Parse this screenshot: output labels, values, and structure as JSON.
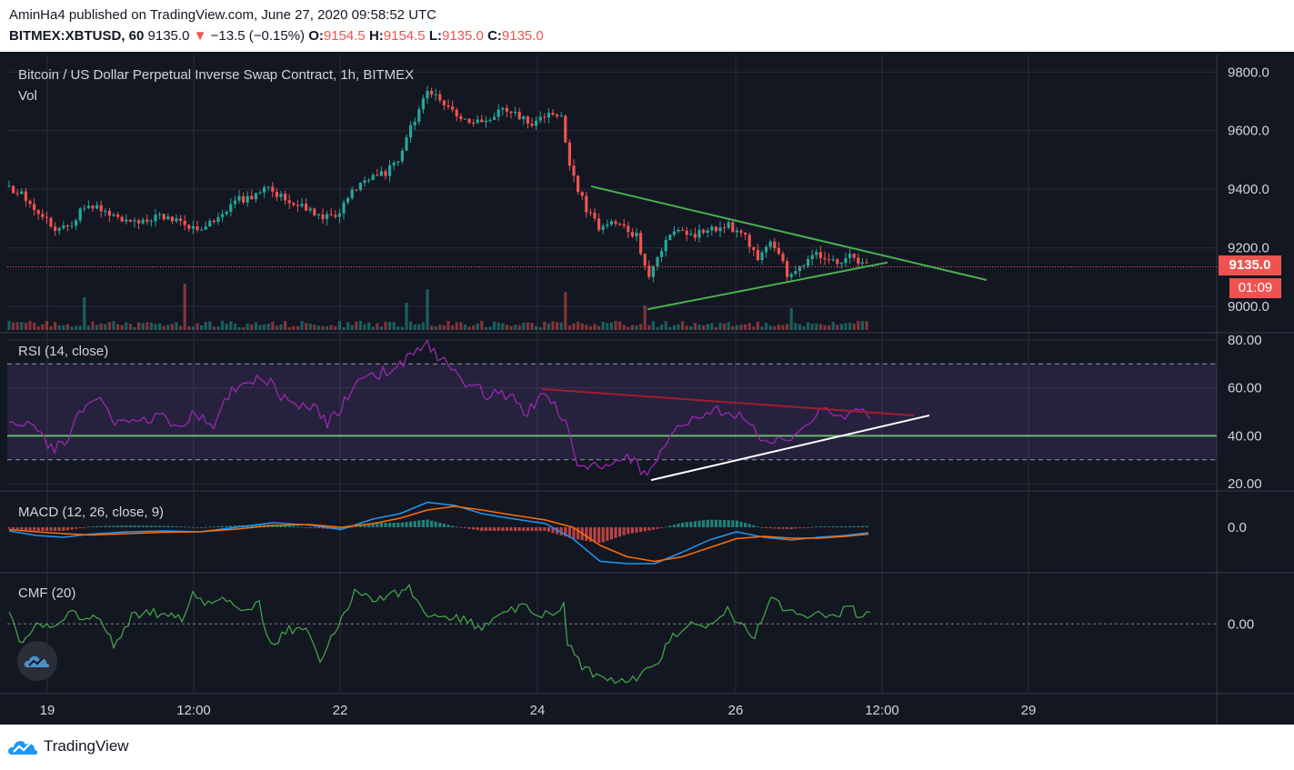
{
  "header": {
    "publisher_line": "AminHa4 published on TradingView.com, June 27, 2020 09:58:52 UTC",
    "symbol": "BITMEX:XBTUSD, 60",
    "last": "9135.0",
    "change_arrow": "▼",
    "change": "−13.5 (−0.15%)",
    "o_label": "O:",
    "o_value": "9154.5",
    "h_label": "H:",
    "h_value": "9154.5",
    "l_label": "L:",
    "l_value": "9135.0",
    "c_label": "C:",
    "c_value": "9135.0"
  },
  "main_pane": {
    "title": "Bitcoin / US Dollar Perpetual Inverse Swap Contract, 1h, BITMEX",
    "vol_label": "Vol",
    "price_badge": "9135.0",
    "countdown_badge": "01:09"
  },
  "rsi_pane": {
    "title": "RSI (14, close)"
  },
  "macd_pane": {
    "title": "MACD (12, 26, close, 9)"
  },
  "cmf_pane": {
    "title": "CMF (20)"
  },
  "footer": {
    "brand": "TradingView"
  },
  "colors": {
    "background": "#131722",
    "up_candle": "#26a69a",
    "down_candle": "#ef5350",
    "trendline": "#4caf50",
    "rsi_line": "#9c27b0",
    "macd_line": "#2196f3",
    "signal_line": "#ff6d00",
    "cmf_line": "#43a047"
  },
  "chart_data": [
    {
      "type": "candlestick",
      "title": "Bitcoin / US Dollar Perpetual Inverse Swap Contract, 1h, BITMEX",
      "x_ticks": [
        "19",
        "12:00",
        "22",
        "24",
        "26",
        "12:00",
        "29"
      ],
      "y_ticks": [
        "9800.0",
        "9600.0",
        "9400.0",
        "9200.0",
        "9000.0"
      ],
      "ylim": [
        8910,
        9860
      ],
      "path_close": [
        [
          0,
          9410
        ],
        [
          25,
          9380
        ],
        [
          45,
          9310
        ],
        [
          60,
          9260
        ],
        [
          80,
          9290
        ],
        [
          95,
          9360
        ],
        [
          110,
          9330
        ],
        [
          130,
          9300
        ],
        [
          150,
          9290
        ],
        [
          175,
          9310
        ],
        [
          200,
          9280
        ],
        [
          220,
          9270
        ],
        [
          240,
          9300
        ],
        [
          260,
          9360
        ],
        [
          280,
          9380
        ],
        [
          295,
          9400
        ],
        [
          315,
          9360
        ],
        [
          335,
          9340
        ],
        [
          355,
          9300
        ],
        [
          375,
          9320
        ],
        [
          385,
          9400
        ],
        [
          405,
          9430
        ],
        [
          425,
          9460
        ],
        [
          440,
          9500
        ],
        [
          450,
          9600
        ],
        [
          462,
          9680
        ],
        [
          470,
          9730
        ],
        [
          485,
          9700
        ],
        [
          500,
          9660
        ],
        [
          520,
          9620
        ],
        [
          535,
          9640
        ],
        [
          552,
          9680
        ],
        [
          570,
          9650
        ],
        [
          585,
          9620
        ],
        [
          600,
          9660
        ],
        [
          618,
          9640
        ],
        [
          624,
          9500
        ],
        [
          634,
          9410
        ],
        [
          645,
          9330
        ],
        [
          660,
          9260
        ],
        [
          680,
          9290
        ],
        [
          700,
          9240
        ],
        [
          712,
          9100
        ],
        [
          725,
          9170
        ],
        [
          740,
          9270
        ],
        [
          760,
          9240
        ],
        [
          780,
          9260
        ],
        [
          800,
          9280
        ],
        [
          820,
          9230
        ],
        [
          835,
          9160
        ],
        [
          845,
          9210
        ],
        [
          855,
          9200
        ],
        [
          866,
          9110
        ],
        [
          880,
          9140
        ],
        [
          895,
          9180
        ],
        [
          915,
          9150
        ],
        [
          935,
          9170
        ],
        [
          955,
          9140
        ]
      ],
      "volume_spikes": [
        {
          "x": 205,
          "v": 0.85
        },
        {
          "x": 469,
          "v": 0.75
        },
        {
          "x": 622,
          "v": 0.7
        },
        {
          "x": 710,
          "v": 0.45
        },
        {
          "x": 92,
          "v": 0.6
        },
        {
          "x": 448,
          "v": 0.5
        },
        {
          "x": 870,
          "v": 0.4
        }
      ],
      "last_price": 9135.0,
      "annotations": [
        {
          "name": "descending-trendline",
          "from": [
            650,
            9410
          ],
          "to": [
            1085,
            9090
          ]
        },
        {
          "name": "ascending-trendline",
          "from": [
            712,
            8990
          ],
          "to": [
            976,
            9150
          ]
        }
      ]
    },
    {
      "type": "line",
      "title": "RSI (14, close)",
      "y_ticks": [
        "80.00",
        "60.00",
        "40.00",
        "20.00"
      ],
      "ylim": [
        17,
        83
      ],
      "band": [
        30,
        70
      ],
      "midline": 40,
      "path": [
        [
          10,
          46
        ],
        [
          30,
          44
        ],
        [
          45,
          40
        ],
        [
          60,
          34
        ],
        [
          75,
          40
        ],
        [
          95,
          55
        ],
        [
          110,
          54
        ],
        [
          130,
          45
        ],
        [
          150,
          46
        ],
        [
          175,
          48
        ],
        [
          200,
          42
        ],
        [
          215,
          50
        ],
        [
          235,
          43
        ],
        [
          255,
          60
        ],
        [
          275,
          63
        ],
        [
          290,
          65
        ],
        [
          305,
          58
        ],
        [
          325,
          52
        ],
        [
          345,
          52
        ],
        [
          360,
          45
        ],
        [
          375,
          52
        ],
        [
          390,
          61
        ],
        [
          405,
          64
        ],
        [
          425,
          67
        ],
        [
          440,
          70
        ],
        [
          455,
          74
        ],
        [
          470,
          79
        ],
        [
          485,
          72
        ],
        [
          500,
          66
        ],
        [
          520,
          60
        ],
        [
          540,
          57
        ],
        [
          560,
          57
        ],
        [
          580,
          49
        ],
        [
          595,
          58
        ],
        [
          610,
          54
        ],
        [
          622,
          45
        ],
        [
          635,
          26
        ],
        [
          650,
          28
        ],
        [
          670,
          28
        ],
        [
          690,
          32
        ],
        [
          712,
          22
        ],
        [
          730,
          35
        ],
        [
          745,
          45
        ],
        [
          765,
          48
        ],
        [
          785,
          52
        ],
        [
          805,
          49
        ],
        [
          825,
          46
        ],
        [
          840,
          36
        ],
        [
          855,
          40
        ],
        [
          870,
          37
        ],
        [
          885,
          45
        ],
        [
          905,
          50
        ],
        [
          925,
          48
        ],
        [
          945,
          50
        ],
        [
          957,
          47
        ]
      ],
      "annotations": [
        {
          "name": "rsi-resistance-line",
          "from": [
            596,
            59.5
          ],
          "to": [
            1005,
            48.5
          ]
        },
        {
          "name": "rsi-support-line",
          "from": [
            716,
            21.5
          ],
          "to": [
            1022,
            48.5
          ]
        }
      ]
    },
    {
      "type": "line",
      "title": "MACD (12, 26, close, 9)",
      "y_ticks": [
        "0.0"
      ],
      "ylim": [
        -100,
        80
      ],
      "macd_path": [
        [
          10,
          -8
        ],
        [
          40,
          -18
        ],
        [
          70,
          -22
        ],
        [
          100,
          -15
        ],
        [
          140,
          -10
        ],
        [
          180,
          -8
        ],
        [
          220,
          -10
        ],
        [
          260,
          0
        ],
        [
          300,
          10
        ],
        [
          340,
          5
        ],
        [
          375,
          -5
        ],
        [
          410,
          18
        ],
        [
          440,
          30
        ],
        [
          470,
          55
        ],
        [
          500,
          48
        ],
        [
          530,
          30
        ],
        [
          560,
          20
        ],
        [
          600,
          8
        ],
        [
          630,
          -25
        ],
        [
          660,
          -75
        ],
        [
          690,
          -80
        ],
        [
          720,
          -80
        ],
        [
          750,
          -55
        ],
        [
          780,
          -28
        ],
        [
          810,
          -10
        ],
        [
          840,
          -22
        ],
        [
          870,
          -28
        ],
        [
          900,
          -22
        ],
        [
          930,
          -18
        ],
        [
          955,
          -12
        ]
      ],
      "signal_path": [
        [
          10,
          -5
        ],
        [
          40,
          -10
        ],
        [
          70,
          -14
        ],
        [
          100,
          -17
        ],
        [
          140,
          -14
        ],
        [
          180,
          -11
        ],
        [
          220,
          -10
        ],
        [
          260,
          -4
        ],
        [
          300,
          4
        ],
        [
          340,
          6
        ],
        [
          375,
          0
        ],
        [
          410,
          8
        ],
        [
          440,
          20
        ],
        [
          470,
          38
        ],
        [
          500,
          46
        ],
        [
          530,
          38
        ],
        [
          560,
          28
        ],
        [
          600,
          16
        ],
        [
          630,
          0
        ],
        [
          660,
          -40
        ],
        [
          690,
          -65
        ],
        [
          720,
          -75
        ],
        [
          750,
          -65
        ],
        [
          780,
          -45
        ],
        [
          810,
          -25
        ],
        [
          840,
          -20
        ],
        [
          870,
          -24
        ],
        [
          900,
          -24
        ],
        [
          930,
          -20
        ],
        [
          955,
          -15
        ]
      ]
    },
    {
      "type": "line",
      "title": "CMF (20)",
      "y_ticks": [
        "0.00"
      ],
      "ylim": [
        -0.3,
        0.22
      ],
      "path": [
        [
          10,
          0.05
        ],
        [
          25,
          -0.1
        ],
        [
          40,
          0.02
        ],
        [
          55,
          -0.02
        ],
        [
          75,
          0.05
        ],
        [
          95,
          0.03
        ],
        [
          110,
          0.01
        ],
        [
          125,
          -0.09
        ],
        [
          145,
          0.03
        ],
        [
          165,
          0.05
        ],
        [
          185,
          0.04
        ],
        [
          200,
          0.02
        ],
        [
          212,
          0.13
        ],
        [
          225,
          0.09
        ],
        [
          245,
          0.1
        ],
        [
          265,
          0.06
        ],
        [
          285,
          0.08
        ],
        [
          298,
          -0.1
        ],
        [
          318,
          -0.02
        ],
        [
          340,
          -0.04
        ],
        [
          352,
          -0.15
        ],
        [
          368,
          -0.04
        ],
        [
          390,
          0.14
        ],
        [
          410,
          0.1
        ],
        [
          430,
          0.12
        ],
        [
          450,
          0.15
        ],
        [
          470,
          0.02
        ],
        [
          490,
          0.03
        ],
        [
          510,
          0.02
        ],
        [
          530,
          -0.02
        ],
        [
          550,
          0.05
        ],
        [
          575,
          0.07
        ],
        [
          600,
          0.04
        ],
        [
          620,
          0.08
        ],
        [
          624,
          -0.08
        ],
        [
          640,
          -0.18
        ],
        [
          660,
          -0.24
        ],
        [
          680,
          -0.25
        ],
        [
          700,
          -0.23
        ],
        [
          720,
          -0.18
        ],
        [
          740,
          -0.05
        ],
        [
          760,
          0.0
        ],
        [
          780,
          -0.02
        ],
        [
          800,
          0.06
        ],
        [
          815,
          -0.01
        ],
        [
          830,
          -0.05
        ],
        [
          848,
          0.11
        ],
        [
          865,
          0.06
        ],
        [
          880,
          0.04
        ],
        [
          900,
          0.05
        ],
        [
          920,
          0.02
        ],
        [
          935,
          0.09
        ],
        [
          945,
          0.01
        ],
        [
          957,
          0.05
        ]
      ]
    }
  ]
}
